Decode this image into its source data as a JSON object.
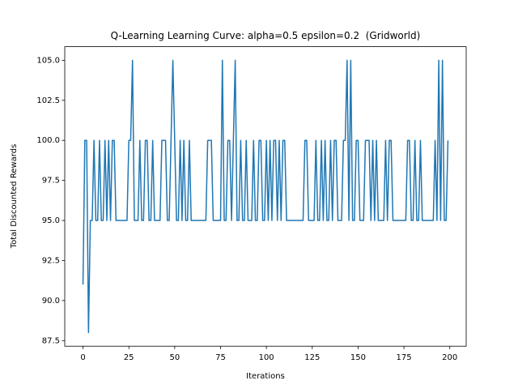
{
  "chart_data": {
    "type": "line",
    "title": "Q-Learning Learning Curve: alpha=0.5 epsilon=0.2  (Gridworld)",
    "x_label": "Iterations",
    "y_label": "Total Discounted Rewards",
    "xlim": [
      -9.95,
      208.95
    ],
    "ylim": [
      87.15,
      105.85
    ],
    "xticks": [
      0,
      25,
      50,
      75,
      100,
      125,
      150,
      175,
      200
    ],
    "yticks": [
      87.5,
      {
        "value": 90,
        "label": "90.0"
      },
      92.5,
      {
        "value": 95,
        "label": "95.0"
      },
      97.5,
      {
        "value": 100,
        "label": "100.0"
      },
      102.5,
      {
        "value": 105,
        "label": "105.0"
      }
    ],
    "series": [
      {
        "color": "#1f77b4",
        "values": [
          91,
          100,
          100,
          88,
          95,
          95,
          100,
          95,
          95,
          100,
          95,
          95,
          100,
          95,
          100,
          95,
          100,
          100,
          95,
          95,
          95,
          95,
          95,
          95,
          95,
          100,
          100,
          105,
          95,
          95,
          95,
          100,
          95,
          95,
          100,
          100,
          95,
          95,
          100,
          95,
          95,
          95,
          95,
          100,
          100,
          100,
          95,
          95,
          100,
          105,
          100,
          95,
          95,
          100,
          95,
          100,
          95,
          95,
          100,
          95,
          95,
          95,
          95,
          95,
          95,
          95,
          95,
          95,
          100,
          100,
          100,
          95,
          95,
          95,
          95,
          95,
          105,
          95,
          95,
          100,
          100,
          95,
          100,
          105,
          95,
          95,
          100,
          95,
          95,
          100,
          95,
          95,
          95,
          100,
          95,
          95,
          100,
          100,
          95,
          95,
          100,
          95,
          100,
          95,
          100,
          100,
          95,
          100,
          95,
          100,
          100,
          95,
          95,
          95,
          95,
          95,
          95,
          95,
          95,
          95,
          95,
          100,
          100,
          95,
          95,
          95,
          95,
          100,
          95,
          95,
          100,
          95,
          100,
          95,
          95,
          100,
          95,
          100,
          100,
          95,
          95,
          95,
          100,
          100,
          105,
          95,
          105,
          95,
          95,
          100,
          100,
          95,
          95,
          95,
          100,
          100,
          100,
          95,
          100,
          95,
          100,
          95,
          95,
          95,
          95,
          100,
          95,
          100,
          100,
          95,
          95,
          95,
          95,
          95,
          95,
          95,
          95,
          100,
          100,
          95,
          95,
          100,
          95,
          95,
          100,
          95,
          95,
          95,
          95,
          95,
          95,
          95,
          100,
          95,
          105,
          95,
          105,
          95,
          95,
          100
        ]
      }
    ]
  }
}
